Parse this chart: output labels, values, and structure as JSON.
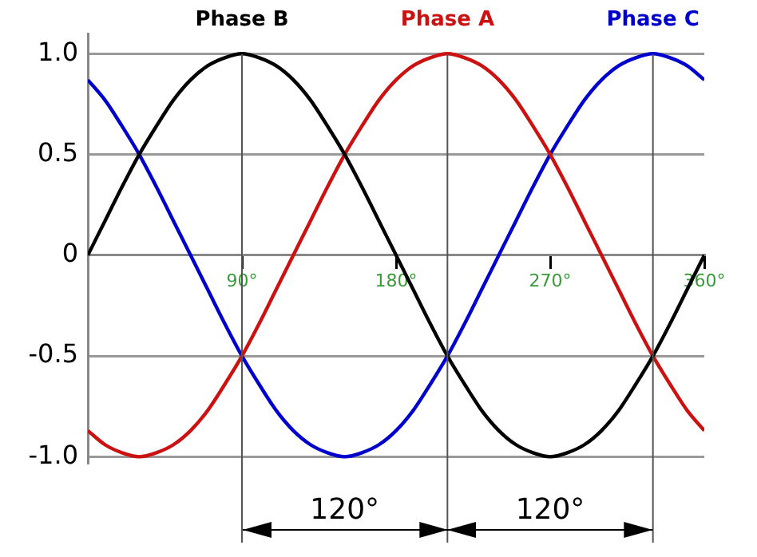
{
  "chart_data": {
    "type": "line",
    "x": [
      0,
      10,
      20,
      30,
      40,
      50,
      60,
      70,
      80,
      90,
      100,
      110,
      120,
      130,
      140,
      150,
      160,
      170,
      180,
      190,
      200,
      210,
      220,
      230,
      240,
      250,
      260,
      270,
      280,
      290,
      300,
      310,
      320,
      330,
      340,
      350,
      360
    ],
    "series": [
      {
        "name": "Phase B",
        "color": "#000000",
        "values": [
          0,
          0.17,
          0.34,
          0.5,
          0.64,
          0.77,
          0.87,
          0.94,
          0.98,
          1,
          0.98,
          0.94,
          0.87,
          0.77,
          0.64,
          0.5,
          0.34,
          0.17,
          0,
          -0.17,
          -0.34,
          -0.5,
          -0.64,
          -0.77,
          -0.87,
          -0.94,
          -0.98,
          -1,
          -0.98,
          -0.94,
          -0.87,
          -0.77,
          -0.64,
          -0.5,
          -0.34,
          -0.17,
          0
        ]
      },
      {
        "name": "Phase A",
        "color": "#cc1111",
        "values": [
          -0.87,
          -0.94,
          -0.98,
          -1,
          -0.98,
          -0.94,
          -0.87,
          -0.77,
          -0.64,
          -0.5,
          -0.34,
          -0.17,
          0,
          0.17,
          0.34,
          0.5,
          0.64,
          0.77,
          0.87,
          0.94,
          0.98,
          1,
          0.98,
          0.94,
          0.87,
          0.77,
          0.64,
          0.5,
          0.34,
          0.17,
          0,
          -0.17,
          -0.34,
          -0.5,
          -0.64,
          -0.77,
          -0.87
        ]
      },
      {
        "name": "Phase C",
        "color": "#0000cc",
        "values": [
          0.87,
          0.77,
          0.64,
          0.5,
          0.34,
          0.17,
          0,
          -0.17,
          -0.34,
          -0.5,
          -0.64,
          -0.77,
          -0.87,
          -0.94,
          -0.98,
          -1,
          -0.98,
          -0.94,
          -0.87,
          -0.77,
          -0.64,
          -0.5,
          -0.34,
          -0.17,
          0,
          0.17,
          0.34,
          0.5,
          0.64,
          0.77,
          0.87,
          0.94,
          0.98,
          1,
          0.98,
          0.94,
          0.87
        ]
      }
    ],
    "xlim": [
      0,
      360
    ],
    "xticks": [
      {
        "value": 90,
        "label": "90°"
      },
      {
        "value": 180,
        "label": "180°"
      },
      {
        "value": 270,
        "label": "270°"
      },
      {
        "value": 360,
        "label": "360°"
      }
    ],
    "ylim": [
      -1.03,
      1.1
    ],
    "yticks": [
      {
        "value": -1,
        "label": "-1.0"
      },
      {
        "value": -0.5,
        "label": "-0.5"
      },
      0,
      {
        "value": 0.5,
        "label": "0.5"
      },
      {
        "value": 1,
        "label": "1.0"
      }
    ],
    "grid": "y",
    "legend": false,
    "marker": "none",
    "line_style": "solid",
    "ref_lines": [
      {
        "axis": "x",
        "value": 90
      },
      {
        "axis": "x",
        "value": 210
      },
      {
        "axis": "x",
        "value": 330
      }
    ],
    "annotations": [
      "120°",
      "120°"
    ]
  }
}
